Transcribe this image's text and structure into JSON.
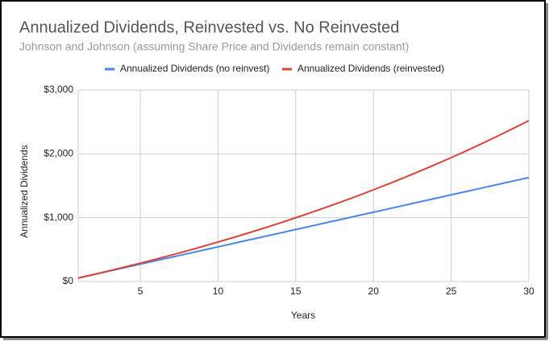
{
  "chart_data": {
    "type": "line",
    "title": "Annualized Dividends, Reinvested vs. No Reinvested",
    "subtitle": "Johnson and Johnson (assuming Share Price and Dividends remain constant)",
    "x_label": "Years",
    "y_label": "Annualized Dividends",
    "x": [
      1,
      2,
      3,
      4,
      5,
      6,
      7,
      8,
      9,
      10,
      11,
      12,
      13,
      14,
      15,
      16,
      17,
      18,
      19,
      20,
      21,
      22,
      23,
      24,
      25,
      26,
      27,
      28,
      29,
      30
    ],
    "series": [
      {
        "name": "Annualized Dividends (no reinvest)",
        "color": "#4a86e8",
        "values": [
          54,
          109,
          163,
          217,
          272,
          326,
          380,
          434,
          489,
          543,
          597,
          652,
          706,
          760,
          815,
          869,
          923,
          977,
          1032,
          1086,
          1140,
          1195,
          1249,
          1303,
          1358,
          1412,
          1466,
          1520,
          1575,
          1629
        ]
      },
      {
        "name": "Annualized Dividends (reinvested)",
        "color": "#db4437",
        "values": [
          54,
          110,
          168,
          227,
          287,
          350,
          414,
          480,
          548,
          618,
          690,
          764,
          840,
          918,
          999,
          1082,
          1167,
          1254,
          1344,
          1437,
          1532,
          1630,
          1731,
          1835,
          1941,
          2051,
          2164,
          2280,
          2399,
          2521
        ]
      }
    ],
    "xlim": [
      1,
      30
    ],
    "xticks": [
      5,
      10,
      15,
      20,
      25,
      30
    ],
    "ylim": [
      0,
      3000
    ],
    "yticks": [
      {
        "value": 0,
        "label": "$0"
      },
      {
        "value": 1000,
        "label": "$1,000"
      },
      {
        "value": 2000,
        "label": "$2,000"
      },
      {
        "value": 3000,
        "label": "$3,000"
      }
    ],
    "grid": true,
    "legend": "top"
  }
}
